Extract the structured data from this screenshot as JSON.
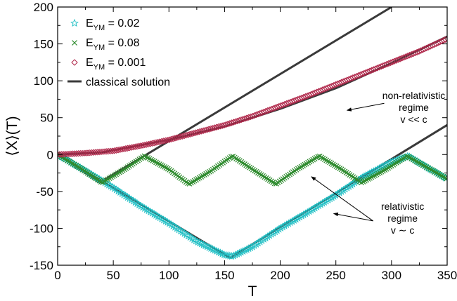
{
  "chart_data": {
    "type": "line",
    "xlabel": "T",
    "ylabel": "⟨X⟩(T)",
    "xlim": [
      0,
      350
    ],
    "ylim": [
      -150,
      200
    ],
    "xticks": [
      0,
      50,
      100,
      150,
      200,
      250,
      300,
      350
    ],
    "yticks": [
      -150,
      -100,
      -50,
      0,
      50,
      100,
      150,
      200
    ],
    "grid": false,
    "legend_position": "top-left",
    "series": [
      {
        "name": "E_YM = 0.02",
        "legend_main": "E",
        "legend_sub": "YM",
        "legend_value": " = 0.02",
        "marker": "star",
        "color": "#1fbfc4",
        "x": [
          0,
          25,
          50,
          75,
          100,
          125,
          150,
          157,
          175,
          200,
          225,
          250,
          275,
          300,
          315,
          335,
          350
        ],
        "y": [
          0,
          -22,
          -45,
          -70,
          -93,
          -118,
          -136,
          -138,
          -125,
          -100,
          -78,
          -55,
          -30,
          -10,
          -2,
          -20,
          -33
        ]
      },
      {
        "name": "E_YM = 0.08",
        "legend_main": "E",
        "legend_sub": "YM",
        "legend_value": " = 0.08",
        "marker": "x",
        "color": "#2e8b2e",
        "x": [
          0,
          20,
          40,
          60,
          78,
          100,
          118,
          138,
          157,
          175,
          196,
          215,
          235,
          255,
          273,
          295,
          314,
          335,
          350
        ],
        "y": [
          0,
          -18,
          -38,
          -20,
          -2,
          -20,
          -40,
          -22,
          -2,
          -20,
          -40,
          -20,
          -2,
          -20,
          -38,
          -20,
          -2,
          -20,
          -33
        ]
      },
      {
        "name": "E_YM = 0.001",
        "legend_main": "E",
        "legend_sub": "YM",
        "legend_value": " = 0.001",
        "marker": "diamond",
        "color": "#b0274a",
        "x": [
          0,
          25,
          50,
          75,
          100,
          125,
          150,
          175,
          200,
          225,
          250,
          275,
          300,
          325,
          350
        ],
        "y": [
          0,
          2,
          5,
          12,
          20,
          30,
          40,
          52,
          66,
          80,
          95,
          110,
          125,
          140,
          157
        ]
      }
    ],
    "classical_solution": {
      "name": "classical solution",
      "color": "#3a3a3a",
      "lines": [
        {
          "x": [
            0,
            155,
            350
          ],
          "y": [
            0,
            -140,
            40
          ]
        },
        {
          "x": [
            0,
            38,
            300
          ],
          "y": [
            0,
            -38,
            200
          ]
        },
        {
          "x": [
            0,
            40,
            100,
            150,
            200,
            250,
            300,
            350
          ],
          "y": [
            0,
            3,
            20,
            38,
            62,
            90,
            124,
            160
          ]
        }
      ]
    },
    "annotations": [
      {
        "lines": [
          "non-relativistic",
          "regime",
          "v << c"
        ],
        "anchor_x": 320,
        "anchor_y": 60,
        "arrow_to": [
          [
            260,
            60
          ]
        ]
      },
      {
        "lines": [
          "relativistic",
          "regime",
          "v ∼ c"
        ],
        "anchor_x": 310,
        "anchor_y": -90,
        "arrow_to": [
          [
            228,
            -30
          ],
          [
            248,
            -80
          ]
        ]
      }
    ]
  }
}
